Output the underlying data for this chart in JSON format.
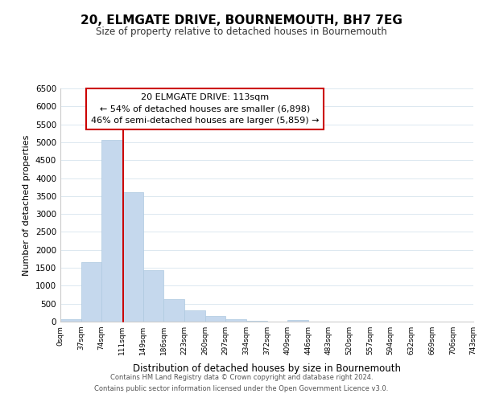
{
  "title": "20, ELMGATE DRIVE, BOURNEMOUTH, BH7 7EG",
  "subtitle": "Size of property relative to detached houses in Bournemouth",
  "xlabel": "Distribution of detached houses by size in Bournemouth",
  "ylabel": "Number of detached properties",
  "bin_edges": [
    0,
    37,
    74,
    111,
    149,
    186,
    223,
    260,
    297,
    334,
    372,
    409,
    446,
    483,
    520,
    557,
    594,
    632,
    669,
    706,
    743
  ],
  "bin_labels": [
    "0sqm",
    "37sqm",
    "74sqm",
    "111sqm",
    "149sqm",
    "186sqm",
    "223sqm",
    "260sqm",
    "297sqm",
    "334sqm",
    "372sqm",
    "409sqm",
    "446sqm",
    "483sqm",
    "520sqm",
    "557sqm",
    "594sqm",
    "632sqm",
    "669sqm",
    "706sqm",
    "743sqm"
  ],
  "bar_heights": [
    75,
    1650,
    5075,
    3600,
    1430,
    620,
    305,
    155,
    75,
    30,
    10,
    50,
    0,
    0,
    0,
    0,
    0,
    0,
    0,
    0
  ],
  "bar_color": "#c5d8ed",
  "bar_edge_color": "#aec9e0",
  "property_line_x": 113,
  "property_line_color": "#cc0000",
  "annotation_title": "20 ELMGATE DRIVE: 113sqm",
  "annotation_line1": "← 54% of detached houses are smaller (6,898)",
  "annotation_line2": "46% of semi-detached houses are larger (5,859) →",
  "annotation_box_color": "#ffffff",
  "annotation_box_edge": "#cc0000",
  "ylim": [
    0,
    6500
  ],
  "yticks": [
    0,
    500,
    1000,
    1500,
    2000,
    2500,
    3000,
    3500,
    4000,
    4500,
    5000,
    5500,
    6000,
    6500
  ],
  "footer_line1": "Contains HM Land Registry data © Crown copyright and database right 2024.",
  "footer_line2": "Contains public sector information licensed under the Open Government Licence v3.0.",
  "background_color": "#ffffff",
  "grid_color": "#dce8f0"
}
